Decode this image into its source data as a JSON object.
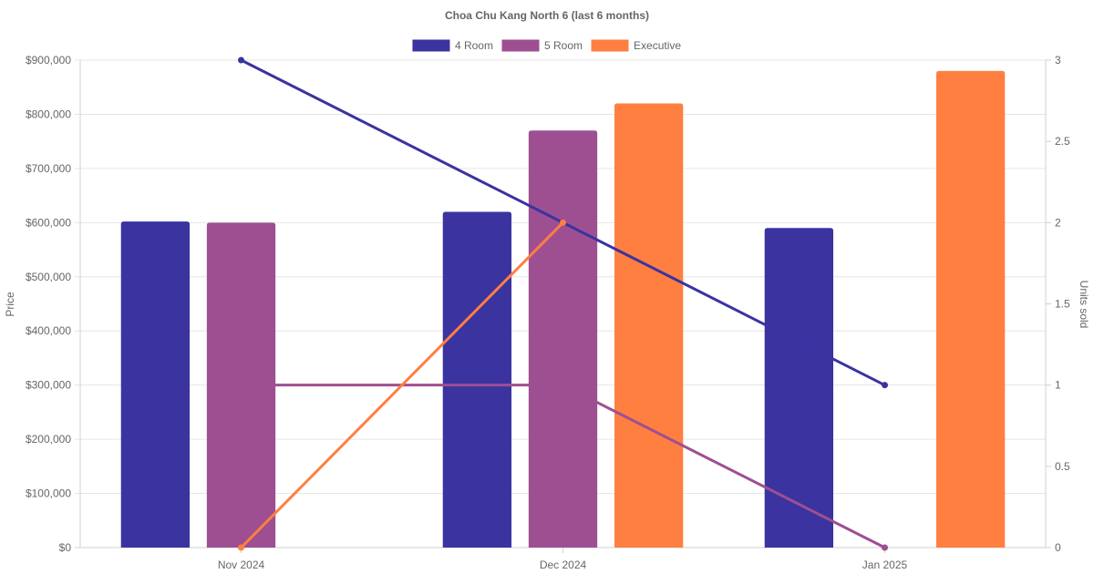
{
  "chart_data": {
    "type": "bar",
    "title": "Choa Chu Kang North 6 (last 6 months)",
    "categories": [
      "Nov 2024",
      "Dec 2024",
      "Jan 2025"
    ],
    "ylabel": "Price",
    "y2label": "Units sold",
    "ylim": [
      0,
      900000
    ],
    "y2lim": [
      0,
      3
    ],
    "y_ticks": [
      "$0",
      "$100,000",
      "$200,000",
      "$300,000",
      "$400,000",
      "$500,000",
      "$600,000",
      "$700,000",
      "$800,000",
      "$900,000"
    ],
    "y2_ticks": [
      "0",
      "0.5",
      "1",
      "1.5",
      "2",
      "2.5",
      "3"
    ],
    "legend_position": "top-center",
    "grid": true,
    "series": [
      {
        "name": "4 Room",
        "color": "#3a33a0",
        "price": [
          602000,
          620000,
          590000
        ],
        "units": [
          3,
          2,
          1
        ]
      },
      {
        "name": "5 Room",
        "color": "#9e4f92",
        "price": [
          600000,
          770000,
          null
        ],
        "units": [
          1,
          1,
          0
        ]
      },
      {
        "name": "Executive",
        "color": "#ff7f41",
        "price": [
          null,
          820000,
          880000
        ],
        "units": [
          0,
          2,
          null
        ]
      }
    ]
  }
}
